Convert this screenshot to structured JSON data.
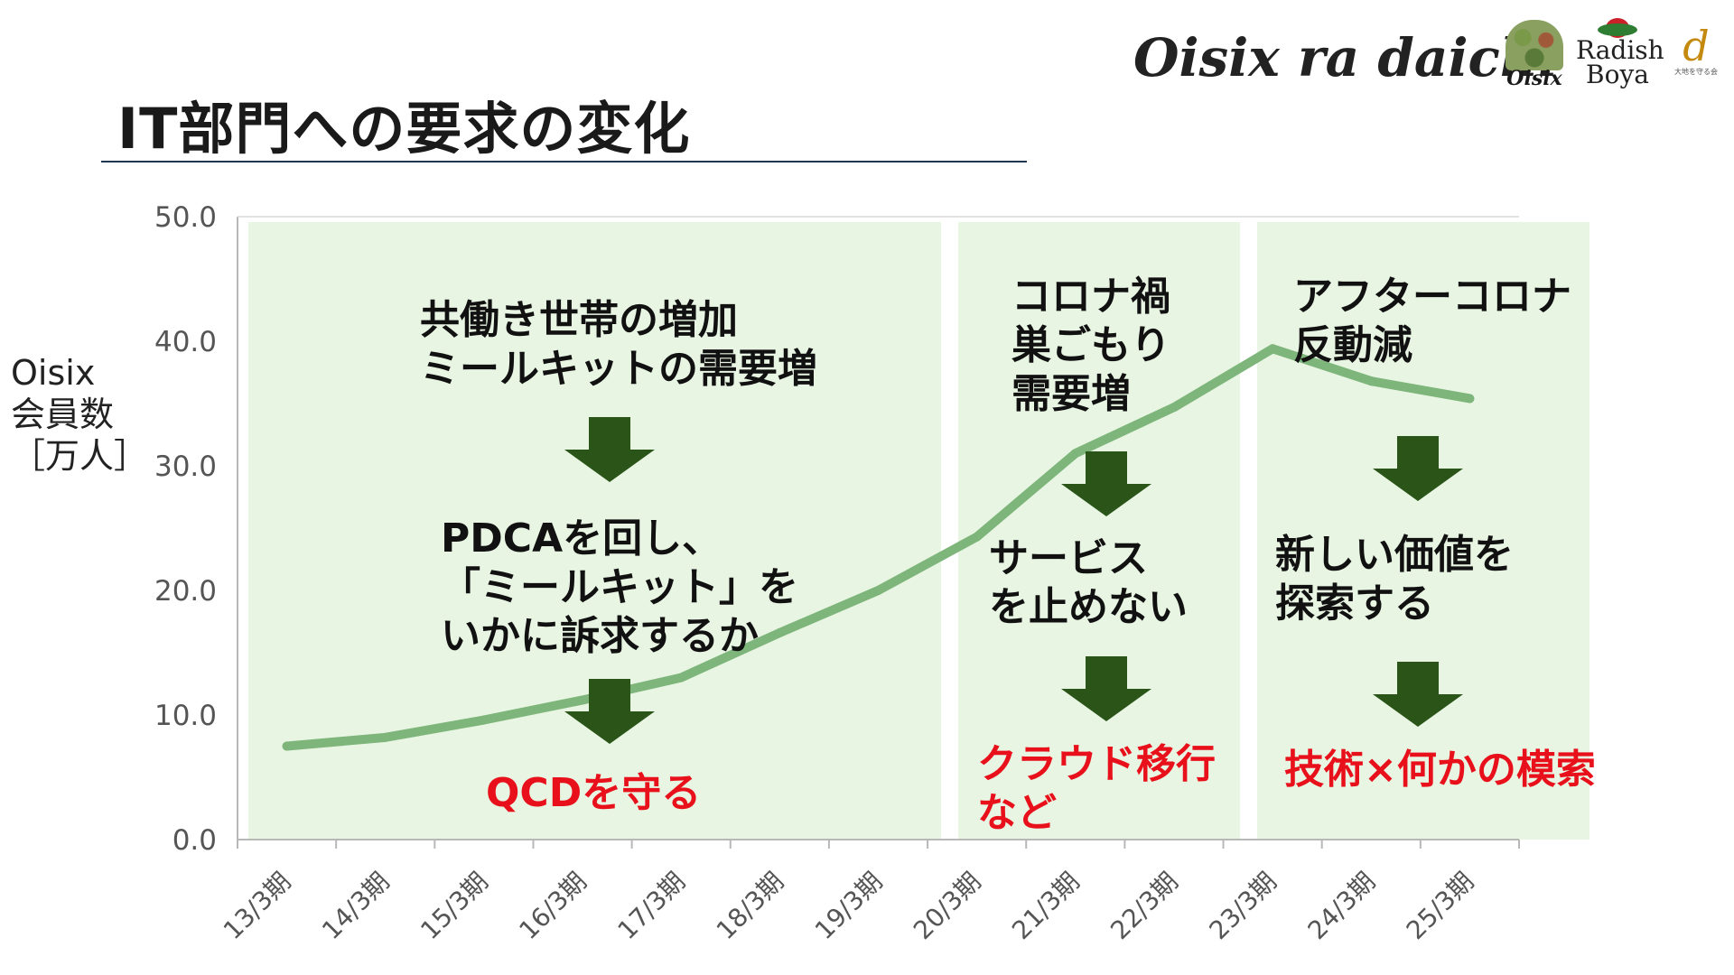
{
  "page": {
    "title": "IT部門への要求の変化"
  },
  "logo": {
    "company": "Oisix ra daichi",
    "brands": [
      {
        "name": "Oisix",
        "icon": "oisix-vegetable-basket-icon"
      },
      {
        "name": "Radish\nBoya",
        "icon": "radish-icon"
      },
      {
        "name": "d",
        "sub": "大地を守る会",
        "icon": "daichi-icon"
      }
    ]
  },
  "chart_data": {
    "type": "line",
    "ylabel": "Oisix\n会員数\n［万人］",
    "ylim": [
      0,
      50
    ],
    "ytick_labels": [
      "0.0",
      "10.0",
      "20.0",
      "30.0",
      "40.0",
      "50.0"
    ],
    "categories": [
      "13/3期",
      "14/3期",
      "15/3期",
      "16/3期",
      "17/3期",
      "18/3期",
      "19/3期",
      "20/3期",
      "21/3期",
      "22/3期",
      "23/3期",
      "24/3期",
      "25/3期"
    ],
    "series": [
      {
        "color": "#7db57a",
        "values": [
          7.5,
          8.2,
          9.6,
          11.2,
          13.0,
          16.6,
          20.0,
          24.3,
          31.0,
          34.7,
          39.4,
          36.8,
          35.4
        ]
      }
    ],
    "grid": false,
    "highlight_color": "#e8f5e3",
    "arrow_color": "#2a5418",
    "accent_color": "#e8101a"
  },
  "phases": [
    {
      "cause": "共働き世帯の増加\nミールキットの需要増",
      "requirement": "PDCAを回し、\n「ミールキット」を\nいかに訴求するか",
      "result": "QCDを守る"
    },
    {
      "cause": "コロナ禍\n巣ごもり\n需要増",
      "requirement": "サービス\nを止めない",
      "result": "クラウド移行\nなど"
    },
    {
      "cause": "アフターコロナ\n反動減",
      "requirement": "新しい価値を\n探索する",
      "result": "技術×何かの模索"
    }
  ]
}
